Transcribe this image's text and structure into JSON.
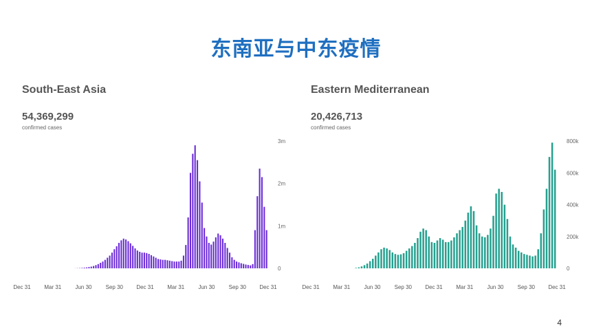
{
  "slide": {
    "title": "东南亚与中东疫情",
    "page_number": "4"
  },
  "colors": {
    "title": "#1f6fc0",
    "sea_bars": "#6a2bd6",
    "emed_bars": "#26a08f"
  },
  "chart_data": [
    {
      "type": "bar",
      "title": "South-East Asia",
      "total": "54,369,299",
      "total_label": "confirmed cases",
      "x_ticks": [
        "Dec 31",
        "Mar 31",
        "Jun 30",
        "Sep 30",
        "Dec 31",
        "Mar 31",
        "Jun 30",
        "Sep 30",
        "Dec 31"
      ],
      "y_ticks": [
        "0",
        "1m",
        "2m",
        "3m"
      ],
      "ylim": [
        0,
        3000000
      ],
      "values": [
        0,
        0,
        0,
        0,
        0,
        0,
        0,
        0,
        0,
        0,
        0,
        0,
        2000,
        4000,
        6000,
        10000,
        15000,
        20000,
        30000,
        40000,
        55000,
        75000,
        100000,
        130000,
        160000,
        200000,
        250000,
        300000,
        370000,
        450000,
        520000,
        600000,
        660000,
        700000,
        680000,
        640000,
        590000,
        530000,
        470000,
        420000,
        390000,
        370000,
        370000,
        360000,
        340000,
        310000,
        280000,
        250000,
        220000,
        210000,
        200000,
        200000,
        190000,
        180000,
        170000,
        160000,
        160000,
        160000,
        180000,
        300000,
        550000,
        1200000,
        2250000,
        2700000,
        2900000,
        2550000,
        2050000,
        1550000,
        950000,
        750000,
        600000,
        560000,
        630000,
        730000,
        820000,
        780000,
        700000,
        600000,
        480000,
        370000,
        260000,
        200000,
        160000,
        140000,
        120000,
        105000,
        90000,
        80000,
        70000,
        100000,
        900000,
        1700000,
        2350000,
        2150000,
        1450000,
        900000
      ],
      "grid": false,
      "legend": "none"
    },
    {
      "type": "bar",
      "title": "Eastern Mediterranean",
      "total": "20,426,713",
      "total_label": "confirmed cases",
      "x_ticks": [
        "Dec 31",
        "Mar 31",
        "Jun 30",
        "Sep 30",
        "Dec 31",
        "Mar 31",
        "Jun 30",
        "Sep 30",
        "Dec 31"
      ],
      "y_ticks": [
        "0",
        "200k",
        "400k",
        "600k",
        "800k"
      ],
      "ylim": [
        0,
        800000
      ],
      "values": [
        0,
        0,
        0,
        0,
        0,
        0,
        0,
        3000,
        6000,
        12000,
        20000,
        30000,
        45000,
        60000,
        80000,
        100000,
        120000,
        130000,
        125000,
        115000,
        100000,
        90000,
        85000,
        88000,
        95000,
        110000,
        125000,
        140000,
        160000,
        190000,
        230000,
        250000,
        240000,
        200000,
        165000,
        160000,
        175000,
        190000,
        180000,
        165000,
        165000,
        175000,
        195000,
        220000,
        240000,
        260000,
        300000,
        350000,
        390000,
        360000,
        270000,
        220000,
        200000,
        195000,
        210000,
        250000,
        330000,
        470000,
        500000,
        480000,
        400000,
        310000,
        200000,
        150000,
        130000,
        110000,
        100000,
        90000,
        85000,
        80000,
        75000,
        80000,
        120000,
        220000,
        370000,
        500000,
        700000,
        790000,
        620000
      ],
      "grid": false,
      "legend": "none"
    }
  ]
}
